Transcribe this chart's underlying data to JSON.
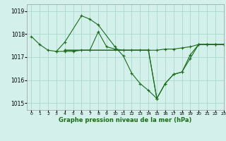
{
  "title": "Graphe pression niveau de la mer (hPa)",
  "bg_color": "#d4f0ea",
  "grid_color": "#aad8cc",
  "line_color": "#1a6b1a",
  "xlim": [
    -0.5,
    23
  ],
  "ylim": [
    1014.7,
    1019.3
  ],
  "yticks": [
    1015,
    1016,
    1017,
    1018,
    1019
  ],
  "xticks": [
    0,
    1,
    2,
    3,
    4,
    5,
    6,
    7,
    8,
    9,
    10,
    11,
    12,
    13,
    14,
    15,
    16,
    17,
    18,
    19,
    20,
    21,
    22,
    23
  ],
  "lines": [
    {
      "x": [
        0,
        1,
        2,
        3,
        4,
        5,
        6,
        7,
        8,
        9,
        10,
        11,
        12,
        13,
        14,
        15,
        16,
        17,
        18,
        19,
        20,
        21,
        22,
        23
      ],
      "y": [
        1017.9,
        1017.55,
        1017.3,
        1017.25,
        1017.25,
        1017.25,
        1017.3,
        1017.3,
        1018.1,
        1017.45,
        1017.35,
        1017.3,
        1017.3,
        1017.3,
        1017.3,
        1017.3,
        1017.35,
        1017.35,
        1017.4,
        1017.45,
        1017.55,
        1017.55,
        1017.55,
        1017.55
      ]
    },
    {
      "x": [
        3,
        4,
        6,
        7,
        8,
        10,
        11,
        12,
        13,
        14,
        15
      ],
      "y": [
        1017.25,
        1017.65,
        1018.8,
        1018.65,
        1018.4,
        1017.45,
        1017.05,
        1016.3,
        1015.85,
        1015.55,
        1015.2
      ]
    },
    {
      "x": [
        4,
        14,
        15,
        16,
        17,
        18,
        19,
        20,
        21,
        22,
        23
      ],
      "y": [
        1017.3,
        1017.3,
        1015.2,
        1015.85,
        1016.25,
        1016.35,
        1016.95,
        1017.55,
        1017.55,
        1017.55,
        1017.55
      ]
    },
    {
      "x": [
        4,
        14,
        15,
        16,
        17,
        18,
        19,
        20,
        21,
        22,
        23
      ],
      "y": [
        1017.3,
        1017.3,
        1015.2,
        1015.85,
        1016.25,
        1016.35,
        1017.1,
        1017.55,
        1017.55,
        1017.55,
        1017.55
      ]
    }
  ]
}
